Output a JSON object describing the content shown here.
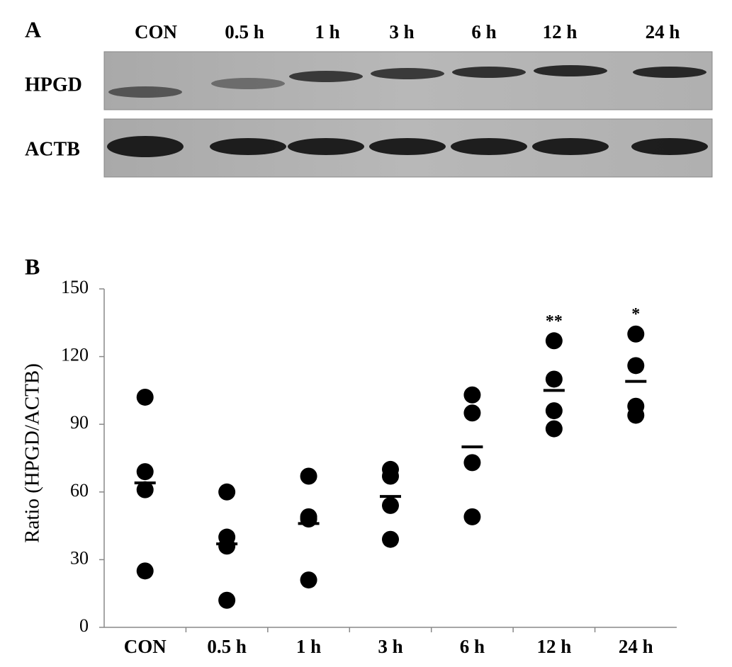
{
  "panel_a": {
    "label": "A",
    "lanes": [
      "CON",
      "0.5 h",
      "1 h",
      "3 h",
      "6 h",
      "12 h",
      "24 h"
    ],
    "rows": [
      "HPGD",
      "ACTB"
    ]
  },
  "chart_data": {
    "type": "scatter",
    "label": "B",
    "ylabel": "Ratio (HPGD/ACTB)",
    "categories": [
      "CON",
      "0.5 h",
      "1 h",
      "3 h",
      "6 h",
      "12 h",
      "24 h"
    ],
    "points": [
      [
        102,
        69,
        61,
        25
      ],
      [
        60,
        40,
        36,
        12
      ],
      [
        67,
        49,
        48,
        21
      ],
      [
        70,
        67,
        54,
        39
      ],
      [
        103,
        95,
        73,
        49
      ],
      [
        127,
        110,
        96,
        88
      ],
      [
        130,
        116,
        98,
        94
      ]
    ],
    "means": [
      64,
      37,
      46,
      58,
      80,
      105,
      109
    ],
    "annotations": [
      null,
      null,
      null,
      null,
      null,
      "**",
      "*"
    ],
    "color": "#000000",
    "ylim": [
      0,
      150
    ],
    "yticks": [
      0,
      30,
      60,
      90,
      120,
      150
    ]
  }
}
